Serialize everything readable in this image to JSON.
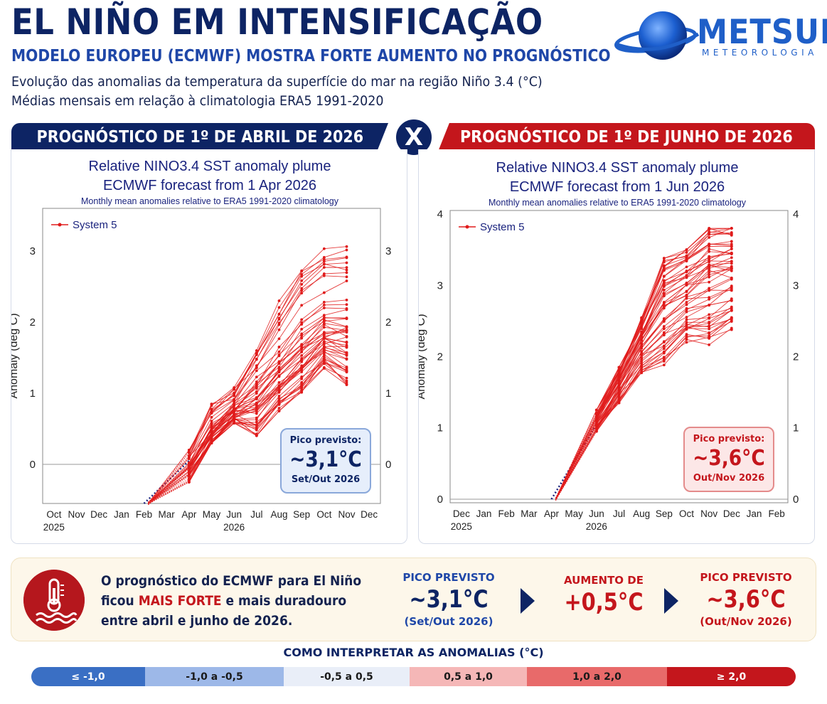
{
  "header": {
    "title": "EL NIÑO EM INTENSIFICAÇÃO",
    "subtitle": "MODELO EUROPEU (ECMWF) MOSTRA FORTE AUMENTO NO PROGNÓSTICO",
    "description_line1": "Evolução das anomalias da temperatura da superfície do mar na região Niño 3.4 (°C)",
    "description_line2": "Médias mensais em relação à climatologia ERA5 1991-2020"
  },
  "logo": {
    "name": "METSUL",
    "tagline": "METEOROLOGIA"
  },
  "banners": {
    "left": "PROGNÓSTICO DE 1º DE ABRIL DE 2026",
    "vs": "X",
    "right": "PROGNÓSTICO DE 1º DE JUNHO DE 2026"
  },
  "peak_boxes": {
    "left": {
      "label": "Pico previsto:",
      "value": "~3,1°C",
      "period": "Set/Out 2026"
    },
    "right": {
      "label": "Pico previsto:",
      "value": "~3,6°C",
      "period": "Out/Nov 2026"
    }
  },
  "summary": {
    "line1": "O prognóstico do ECMWF para El Niño",
    "line2_pre": "ficou ",
    "line2_highlight": "MAIS FORTE",
    "line2_post": " e mais duradouro",
    "line3": "entre abril e junho de 2026.",
    "stat1": {
      "label": "PICO PREVISTO",
      "value": "~3,1°C",
      "period": "(Set/Out 2026)"
    },
    "stat2": {
      "label": "AUMENTO DE",
      "value": "+0,5°C"
    },
    "stat3": {
      "label": "PICO PREVISTO",
      "value": "~3,6°C",
      "period": "(Out/Nov 2026)"
    }
  },
  "legend": {
    "title": "COMO INTERPRETAR AS ANOMALIAS (°C)",
    "items": [
      {
        "label": "≤ -1,0",
        "color": "#3a6fc4"
      },
      {
        "label": "-1,0 a -0,5",
        "color": "#9db8e8"
      },
      {
        "label": "-0,5 a 0,5",
        "color": "#e9eef8"
      },
      {
        "label": "0,5 a 1,0",
        "color": "#f5b7b7"
      },
      {
        "label": "1,0 a 2,0",
        "color": "#e86a6a"
      },
      {
        "label": "≥ 2,0",
        "color": "#c4161c"
      }
    ]
  },
  "chart_data": [
    {
      "type": "line",
      "title": "Relative NINO3.4 SST anomaly plume",
      "subtitle": "ECMWF forecast from 1 Apr 2026",
      "note": "Monthly mean anomalies relative to ERA5 1991-2020 climatology",
      "ylabel": "Anomaly (deg C)",
      "ylim": [
        -0.55,
        3.6
      ],
      "yticks": [
        0,
        1,
        2,
        3
      ],
      "categories": [
        "Oct",
        "Nov",
        "Dec",
        "Jan",
        "Feb",
        "Mar",
        "Apr",
        "May",
        "Jun",
        "Jul",
        "Aug",
        "Sep",
        "Oct",
        "Nov",
        "Dec"
      ],
      "year_labels": [
        {
          "category_index": 0,
          "label": "2025"
        },
        {
          "category_index": 8,
          "label": "2026"
        }
      ],
      "legend": "System 5",
      "legend_position": "top-left",
      "observed": {
        "x": [
          4,
          6
        ],
        "y": [
          -0.55,
          0.05
        ]
      },
      "forecast_x": [
        6,
        7,
        8,
        9,
        10,
        11,
        12,
        13
      ],
      "ensemble_min": [
        -0.25,
        0.3,
        0.58,
        0.38,
        0.75,
        1.0,
        1.35,
        1.12
      ],
      "ensemble_max": [
        0.2,
        0.9,
        1.08,
        1.6,
        2.3,
        2.85,
        3.1,
        3.12
      ],
      "ensemble_mean": [
        0.02,
        0.45,
        0.78,
        1.1,
        1.42,
        1.75,
        2.0,
        2.05
      ],
      "members": 51,
      "color": "#e01b1b"
    },
    {
      "type": "line",
      "title": "Relative NINO3.4 SST anomaly plume",
      "subtitle": "ECMWF forecast from 1 Jun 2026",
      "note": "Monthly mean anomalies relative to ERA5 1991-2020 climatology",
      "ylabel": "Anomaly (deg C)",
      "ylim": [
        -0.05,
        4.05
      ],
      "yticks": [
        0,
        1,
        2,
        3,
        4
      ],
      "categories": [
        "Dec",
        "Jan",
        "Feb",
        "Mar",
        "Apr",
        "May",
        "Jun",
        "Jul",
        "Aug",
        "Sep",
        "Oct",
        "Nov",
        "Dec",
        "Jan",
        "Feb"
      ],
      "year_labels": [
        {
          "category_index": 0,
          "label": "2025"
        },
        {
          "category_index": 6,
          "label": "2026"
        }
      ],
      "legend": "System 5",
      "legend_position": "top-left",
      "observed": {
        "x": [
          4,
          6
        ],
        "y": [
          0.0,
          1.05
        ]
      },
      "forecast_x": [
        6,
        7,
        8,
        9,
        10,
        11,
        12
      ],
      "ensemble_min": [
        0.95,
        1.35,
        1.7,
        1.85,
        2.15,
        2.1,
        2.35
      ],
      "ensemble_max": [
        1.25,
        1.85,
        2.55,
        3.38,
        3.5,
        3.8,
        3.8
      ],
      "ensemble_mean": [
        1.1,
        1.62,
        2.22,
        2.65,
        2.9,
        3.1,
        3.15
      ],
      "members": 51,
      "color": "#e01b1b"
    }
  ]
}
